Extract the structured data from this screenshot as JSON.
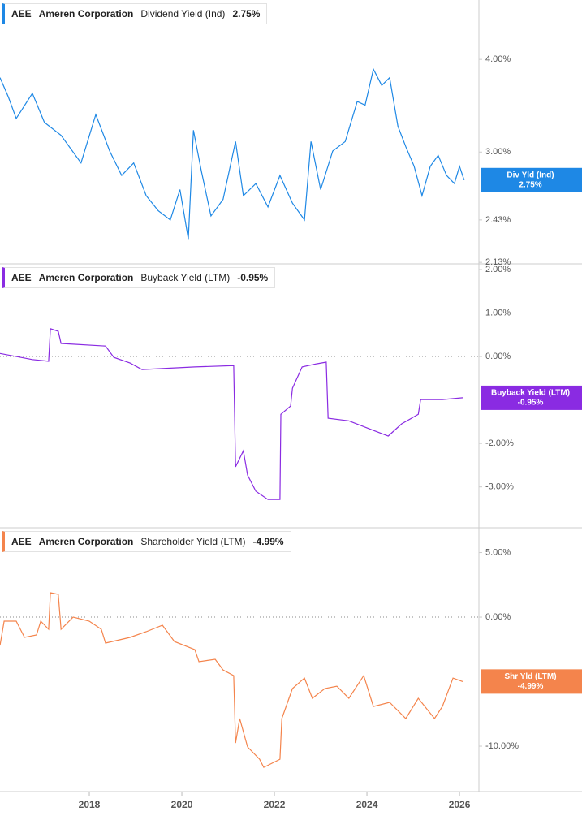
{
  "chart_data": [
    {
      "type": "line",
      "ticker": "AEE",
      "company": "Ameren Corporation",
      "tag_name": "Div Yld (Ind)",
      "last_label": "2.75%",
      "log_scale": true,
      "zero_line": false,
      "xlim": [
        2016.07,
        2026.42
      ],
      "ylim": [
        2.12,
        4.81
      ],
      "yticks": [
        {
          "value": 2.13,
          "label": "2.13%"
        },
        {
          "value": 2.43,
          "label": "2.43%"
        },
        {
          "value": 3,
          "label": "3.00%"
        },
        {
          "value": 4,
          "label": "4.00%"
        }
      ],
      "series": [
        {
          "name": "Dividend Yield (Ind)",
          "color": "#1e88e5",
          "x": [
            2016.07,
            2016.25,
            2016.42,
            2016.77,
            2017.03,
            2017.39,
            2017.82,
            2018.14,
            2018.44,
            2018.7,
            2018.96,
            2019.23,
            2019.49,
            2019.75,
            2019.96,
            2020.14,
            2020.25,
            2020.42,
            2020.63,
            2020.89,
            2021.16,
            2021.33,
            2021.6,
            2021.86,
            2022.12,
            2022.39,
            2022.65,
            2022.79,
            2023.0,
            2023.26,
            2023.53,
            2023.79,
            2023.96,
            2024.14,
            2024.32,
            2024.49,
            2024.67,
            2024.84,
            2025.02,
            2025.19,
            2025.37,
            2025.54,
            2025.72,
            2025.89,
            2026.0,
            2026.1
          ],
          "values": [
            3.78,
            3.56,
            3.33,
            3.6,
            3.29,
            3.16,
            2.9,
            3.37,
            3.01,
            2.79,
            2.9,
            2.62,
            2.5,
            2.43,
            2.67,
            2.29,
            3.21,
            2.83,
            2.46,
            2.59,
            3.1,
            2.62,
            2.72,
            2.53,
            2.79,
            2.56,
            2.43,
            3.1,
            2.67,
            3.01,
            3.1,
            3.51,
            3.47,
            3.88,
            3.69,
            3.78,
            3.25,
            3.05,
            2.87,
            2.62,
            2.87,
            2.97,
            2.79,
            2.72,
            2.87,
            2.75
          ]
        }
      ]
    },
    {
      "type": "line",
      "ticker": "AEE",
      "company": "Ameren Corporation",
      "tag_name": "Buyback Yield (LTM)",
      "last_label": "-0.95%",
      "log_scale": false,
      "zero_line": true,
      "xlim": [
        2016.07,
        2026.42
      ],
      "ylim": [
        -3.94,
        2.13
      ],
      "yticks": [
        {
          "value": -3,
          "label": "-3.00%"
        },
        {
          "value": -2,
          "label": "-2.00%"
        },
        {
          "value": 0,
          "label": "0.00%"
        },
        {
          "value": 1,
          "label": "1.00%"
        },
        {
          "value": 2,
          "label": "2.00%"
        }
      ],
      "series": [
        {
          "name": "Buyback Yield (LTM)",
          "color": "#8a2be2",
          "x": [
            2016.07,
            2016.77,
            2017.12,
            2017.16,
            2017.33,
            2017.39,
            2018.35,
            2018.53,
            2018.88,
            2019.14,
            2020.28,
            2021.12,
            2021.16,
            2021.33,
            2021.42,
            2021.6,
            2021.86,
            2022.12,
            2022.14,
            2022.35,
            2022.39,
            2022.6,
            2022.91,
            2023.12,
            2023.16,
            2023.61,
            2024.14,
            2024.46,
            2024.75,
            2025.11,
            2025.16,
            2025.63,
            2026.07
          ],
          "values": [
            0.07,
            -0.07,
            -0.11,
            0.64,
            0.58,
            0.3,
            0.24,
            -0.02,
            -0.15,
            -0.3,
            -0.24,
            -0.21,
            -2.54,
            -2.17,
            -2.73,
            -3.1,
            -3.29,
            -3.29,
            -1.33,
            -1.14,
            -0.73,
            -0.24,
            -0.17,
            -0.13,
            -1.42,
            -1.48,
            -1.7,
            -1.83,
            -1.55,
            -1.33,
            -0.99,
            -0.99,
            -0.95
          ]
        }
      ]
    },
    {
      "type": "line",
      "ticker": "AEE",
      "company": "Ameren Corporation",
      "tag_name": "Shr Yld (LTM)",
      "last_label": "-4.99%",
      "log_scale": false,
      "zero_line": true,
      "xlim": [
        2016.07,
        2026.42
      ],
      "ylim": [
        -13.52,
        6.92
      ],
      "yticks": [
        {
          "value": -10,
          "label": "-10.00%"
        },
        {
          "value": 0,
          "label": "0.00%"
        },
        {
          "value": 5,
          "label": "5.00%"
        }
      ],
      "xticks": [
        2018,
        2020,
        2022,
        2024,
        2026
      ],
      "series": [
        {
          "name": "Shareholder Yield (LTM)",
          "color": "#f4844c",
          "x": [
            2016.07,
            2016.16,
            2016.42,
            2016.6,
            2016.86,
            2016.95,
            2017.12,
            2017.16,
            2017.33,
            2017.39,
            2017.65,
            2018.0,
            2018.26,
            2018.35,
            2018.88,
            2019.23,
            2019.58,
            2019.84,
            2020.28,
            2020.37,
            2020.72,
            2020.89,
            2021.12,
            2021.16,
            2021.25,
            2021.42,
            2021.68,
            2021.77,
            2022.12,
            2022.16,
            2022.39,
            2022.65,
            2022.82,
            2023.09,
            2023.35,
            2023.61,
            2023.93,
            2024.14,
            2024.49,
            2024.84,
            2025.11,
            2025.46,
            2025.63,
            2025.86,
            2026.07
          ],
          "values": [
            -2.2,
            -0.31,
            -0.31,
            -1.57,
            -1.38,
            -0.31,
            -0.94,
            1.89,
            1.76,
            -0.94,
            0,
            -0.31,
            -0.94,
            -2.01,
            -1.57,
            -1.13,
            -0.63,
            -1.89,
            -2.52,
            -3.46,
            -3.27,
            -4.09,
            -4.53,
            -9.75,
            -7.86,
            -10.06,
            -11.01,
            -11.64,
            -11.01,
            -7.86,
            -5.53,
            -4.72,
            -6.29,
            -5.53,
            -5.35,
            -6.29,
            -4.53,
            -6.92,
            -6.6,
            -7.86,
            -6.29,
            -7.86,
            -6.92,
            -4.72,
            -4.99
          ]
        }
      ]
    }
  ]
}
